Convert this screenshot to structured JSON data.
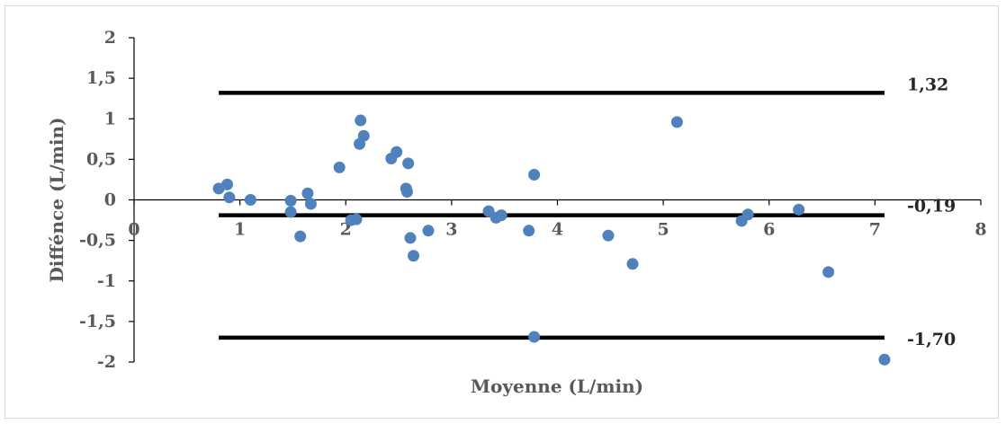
{
  "chart_data": {
    "type": "scatter",
    "title": "",
    "xlabel": "Moyenne (L/min)",
    "ylabel": "Diffénce (L/min)",
    "xlim": [
      0,
      8
    ],
    "ylim": [
      -2,
      2
    ],
    "x_ticks": [
      "0",
      "1",
      "2",
      "3",
      "4",
      "5",
      "6",
      "7",
      "8"
    ],
    "y_ticks": [
      "2",
      "1,5",
      "1",
      "0,5",
      "0",
      "-0,5",
      "-1",
      "-1,5",
      "-2"
    ],
    "grid": false,
    "legend": "none",
    "marker_color": "#4f81bd",
    "reference_lines": [
      {
        "value": 1.32,
        "label": "1,32"
      },
      {
        "value": -0.19,
        "label": "-0,19"
      },
      {
        "value": -1.7,
        "label": "-1,70"
      }
    ],
    "points": [
      {
        "x": 0.8,
        "y": 0.14
      },
      {
        "x": 0.88,
        "y": 0.19
      },
      {
        "x": 0.9,
        "y": 0.03
      },
      {
        "x": 1.1,
        "y": 0.0
      },
      {
        "x": 1.48,
        "y": -0.01
      },
      {
        "x": 1.48,
        "y": -0.15
      },
      {
        "x": 1.57,
        "y": -0.45
      },
      {
        "x": 1.64,
        "y": 0.08
      },
      {
        "x": 1.67,
        "y": -0.05
      },
      {
        "x": 1.94,
        "y": 0.4
      },
      {
        "x": 2.05,
        "y": -0.25
      },
      {
        "x": 2.1,
        "y": -0.24
      },
      {
        "x": 2.13,
        "y": 0.69
      },
      {
        "x": 2.14,
        "y": 0.98
      },
      {
        "x": 2.17,
        "y": 0.79
      },
      {
        "x": 2.43,
        "y": 0.51
      },
      {
        "x": 2.48,
        "y": 0.59
      },
      {
        "x": 2.57,
        "y": 0.14
      },
      {
        "x": 2.58,
        "y": 0.1
      },
      {
        "x": 2.59,
        "y": 0.45
      },
      {
        "x": 2.61,
        "y": -0.47
      },
      {
        "x": 2.64,
        "y": -0.69
      },
      {
        "x": 2.78,
        "y": -0.38
      },
      {
        "x": 3.35,
        "y": -0.14
      },
      {
        "x": 3.42,
        "y": -0.22
      },
      {
        "x": 3.47,
        "y": -0.19
      },
      {
        "x": 3.73,
        "y": -0.38
      },
      {
        "x": 3.78,
        "y": 0.31
      },
      {
        "x": 3.78,
        "y": -1.69
      },
      {
        "x": 4.48,
        "y": -0.44
      },
      {
        "x": 4.71,
        "y": -0.79
      },
      {
        "x": 5.13,
        "y": 0.96
      },
      {
        "x": 5.74,
        "y": -0.26
      },
      {
        "x": 5.8,
        "y": -0.18
      },
      {
        "x": 6.28,
        "y": -0.12
      },
      {
        "x": 6.56,
        "y": -0.89
      },
      {
        "x": 7.09,
        "y": -1.97
      }
    ]
  }
}
